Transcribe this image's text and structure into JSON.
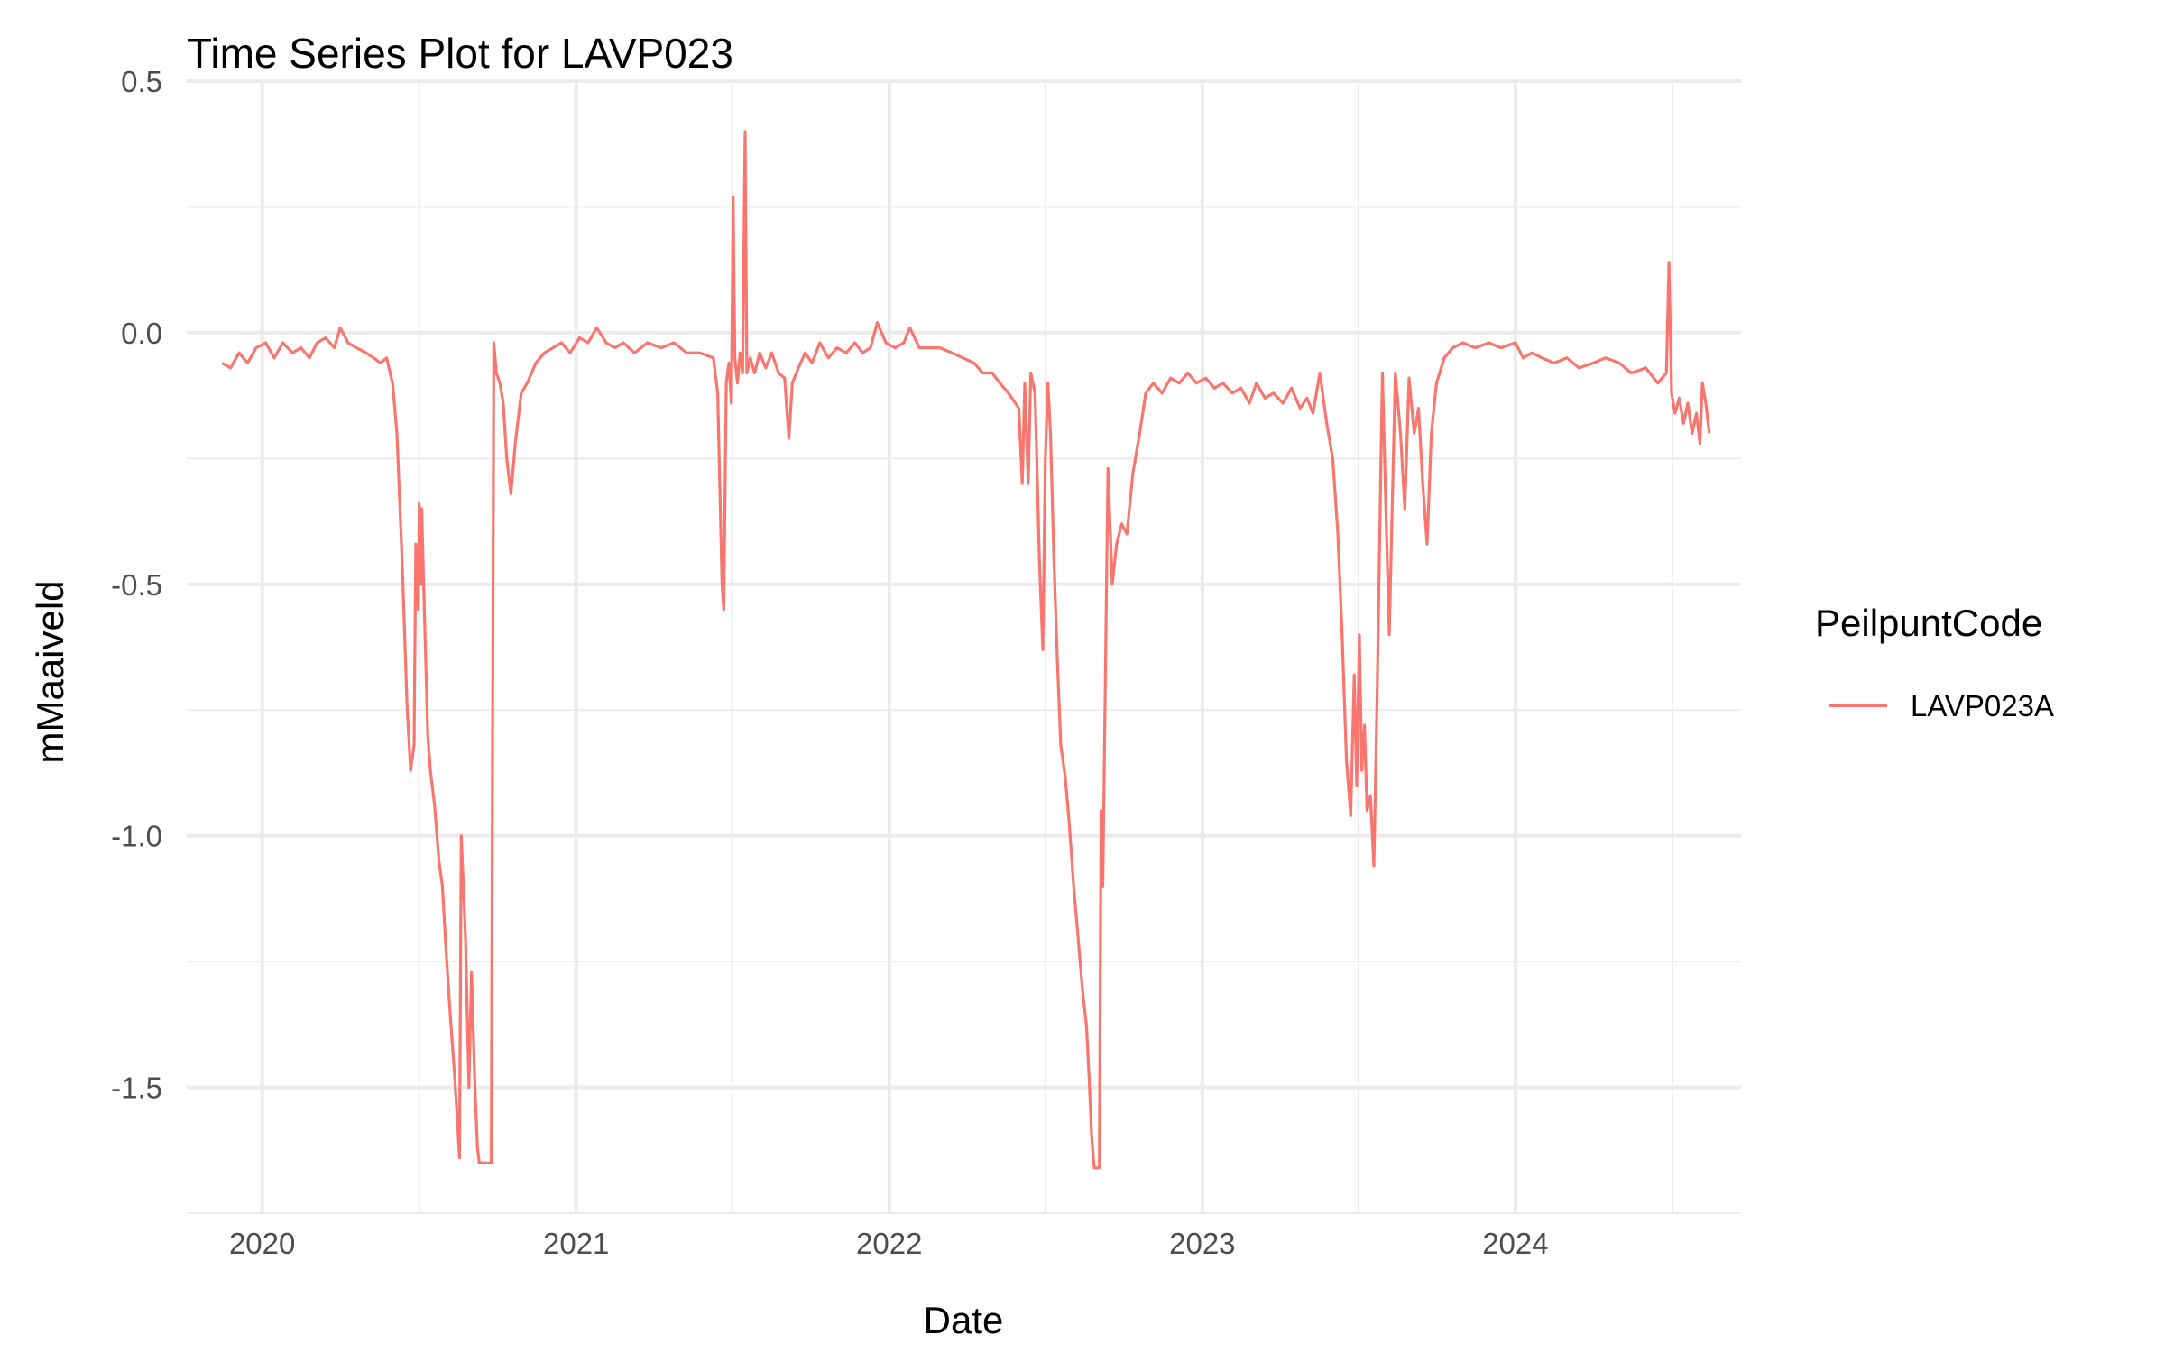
{
  "chart_data": {
    "type": "line",
    "title": "Time Series Plot for LAVP023",
    "xlabel": "Date",
    "ylabel": "mMaaiveld",
    "x_ticks": [
      "2020",
      "2021",
      "2022",
      "2023",
      "2024"
    ],
    "y_ticks": [
      "0.5",
      "0.0",
      "-0.5",
      "-1.0",
      "-1.5"
    ],
    "ylim": [
      -1.75,
      0.5
    ],
    "xlim": [
      "2019-10-05",
      "2024-09-20"
    ],
    "grid": true,
    "legend": {
      "title": "PeilpuntCode",
      "position": "right"
    },
    "series": [
      {
        "name": "LAVP023A",
        "color": "#F8766D",
        "points": [
          [
            "2019-11-15",
            -0.06
          ],
          [
            "2019-11-25",
            -0.07
          ],
          [
            "2019-12-05",
            -0.04
          ],
          [
            "2019-12-15",
            -0.06
          ],
          [
            "2019-12-25",
            -0.03
          ],
          [
            "2020-01-05",
            -0.02
          ],
          [
            "2020-01-15",
            -0.05
          ],
          [
            "2020-01-25",
            -0.02
          ],
          [
            "2020-02-05",
            -0.04
          ],
          [
            "2020-02-15",
            -0.03
          ],
          [
            "2020-02-25",
            -0.05
          ],
          [
            "2020-03-05",
            -0.02
          ],
          [
            "2020-03-15",
            -0.01
          ],
          [
            "2020-03-25",
            -0.03
          ],
          [
            "2020-04-01",
            0.01
          ],
          [
            "2020-04-10",
            -0.02
          ],
          [
            "2020-04-20",
            -0.03
          ],
          [
            "2020-05-01",
            -0.04
          ],
          [
            "2020-05-10",
            -0.05
          ],
          [
            "2020-05-18",
            -0.06
          ],
          [
            "2020-05-25",
            -0.05
          ],
          [
            "2020-06-01",
            -0.1
          ],
          [
            "2020-06-06",
            -0.2
          ],
          [
            "2020-06-12",
            -0.45
          ],
          [
            "2020-06-18",
            -0.75
          ],
          [
            "2020-06-22",
            -0.87
          ],
          [
            "2020-06-26",
            -0.82
          ],
          [
            "2020-06-28",
            -0.42
          ],
          [
            "2020-07-01",
            -0.55
          ],
          [
            "2020-07-02",
            -0.34
          ],
          [
            "2020-07-04",
            -0.5
          ],
          [
            "2020-07-05",
            -0.35
          ],
          [
            "2020-07-08",
            -0.55
          ],
          [
            "2020-07-12",
            -0.8
          ],
          [
            "2020-07-15",
            -0.87
          ],
          [
            "2020-07-20",
            -0.94
          ],
          [
            "2020-07-25",
            -1.05
          ],
          [
            "2020-07-29",
            -1.1
          ],
          [
            "2020-08-02",
            -1.22
          ],
          [
            "2020-08-07",
            -1.35
          ],
          [
            "2020-08-12",
            -1.47
          ],
          [
            "2020-08-16",
            -1.58
          ],
          [
            "2020-08-18",
            -1.64
          ],
          [
            "2020-08-20",
            -1.0
          ],
          [
            "2020-08-25",
            -1.2
          ],
          [
            "2020-08-29",
            -1.5
          ],
          [
            "2020-09-01",
            -1.27
          ],
          [
            "2020-09-05",
            -1.5
          ],
          [
            "2020-09-08",
            -1.62
          ],
          [
            "2020-09-10",
            -1.65
          ],
          [
            "2020-09-24",
            -1.65
          ],
          [
            "2020-09-27",
            -0.02
          ],
          [
            "2020-09-30",
            -0.08
          ],
          [
            "2020-10-04",
            -0.1
          ],
          [
            "2020-10-08",
            -0.14
          ],
          [
            "2020-10-12",
            -0.25
          ],
          [
            "2020-10-17",
            -0.32
          ],
          [
            "2020-10-22",
            -0.22
          ],
          [
            "2020-10-29",
            -0.12
          ],
          [
            "2020-11-05",
            -0.1
          ],
          [
            "2020-11-15",
            -0.06
          ],
          [
            "2020-11-25",
            -0.04
          ],
          [
            "2020-12-05",
            -0.03
          ],
          [
            "2020-12-15",
            -0.02
          ],
          [
            "2020-12-25",
            -0.04
          ],
          [
            "2021-01-05",
            -0.01
          ],
          [
            "2021-01-15",
            -0.02
          ],
          [
            "2021-01-25",
            0.01
          ],
          [
            "2021-02-05",
            -0.02
          ],
          [
            "2021-02-15",
            -0.03
          ],
          [
            "2021-02-25",
            -0.02
          ],
          [
            "2021-03-10",
            -0.04
          ],
          [
            "2021-03-25",
            -0.02
          ],
          [
            "2021-04-10",
            -0.03
          ],
          [
            "2021-04-25",
            -0.02
          ],
          [
            "2021-05-10",
            -0.04
          ],
          [
            "2021-05-25",
            -0.04
          ],
          [
            "2021-06-10",
            -0.05
          ],
          [
            "2021-06-15",
            -0.12
          ],
          [
            "2021-06-20",
            -0.5
          ],
          [
            "2021-06-22",
            -0.55
          ],
          [
            "2021-06-25",
            -0.1
          ],
          [
            "2021-06-28",
            -0.06
          ],
          [
            "2021-07-01",
            -0.14
          ],
          [
            "2021-07-03",
            0.27
          ],
          [
            "2021-07-05",
            -0.05
          ],
          [
            "2021-07-08",
            -0.1
          ],
          [
            "2021-07-11",
            -0.04
          ],
          [
            "2021-07-14",
            -0.08
          ],
          [
            "2021-07-17",
            0.4
          ],
          [
            "2021-07-19",
            -0.08
          ],
          [
            "2021-07-23",
            -0.05
          ],
          [
            "2021-07-28",
            -0.08
          ],
          [
            "2021-08-03",
            -0.04
          ],
          [
            "2021-08-10",
            -0.07
          ],
          [
            "2021-08-17",
            -0.04
          ],
          [
            "2021-08-25",
            -0.08
          ],
          [
            "2021-09-01",
            -0.09
          ],
          [
            "2021-09-06",
            -0.21
          ],
          [
            "2021-09-10",
            -0.1
          ],
          [
            "2021-09-17",
            -0.07
          ],
          [
            "2021-09-25",
            -0.04
          ],
          [
            "2021-10-03",
            -0.06
          ],
          [
            "2021-10-12",
            -0.02
          ],
          [
            "2021-10-22",
            -0.05
          ],
          [
            "2021-11-01",
            -0.03
          ],
          [
            "2021-11-12",
            -0.04
          ],
          [
            "2021-11-22",
            -0.02
          ],
          [
            "2021-12-01",
            -0.04
          ],
          [
            "2021-12-10",
            -0.03
          ],
          [
            "2021-12-18",
            0.02
          ],
          [
            "2021-12-28",
            -0.02
          ],
          [
            "2022-01-08",
            -0.03
          ],
          [
            "2022-01-18",
            -0.02
          ],
          [
            "2022-01-25",
            0.01
          ],
          [
            "2022-02-05",
            -0.03
          ],
          [
            "2022-02-18",
            -0.03
          ],
          [
            "2022-03-01",
            -0.03
          ],
          [
            "2022-03-15",
            -0.04
          ],
          [
            "2022-03-28",
            -0.05
          ],
          [
            "2022-04-10",
            -0.06
          ],
          [
            "2022-04-20",
            -0.08
          ],
          [
            "2022-05-01",
            -0.08
          ],
          [
            "2022-05-10",
            -0.1
          ],
          [
            "2022-05-20",
            -0.12
          ],
          [
            "2022-06-01",
            -0.15
          ],
          [
            "2022-06-05",
            -0.3
          ],
          [
            "2022-06-08",
            -0.1
          ],
          [
            "2022-06-12",
            -0.3
          ],
          [
            "2022-06-15",
            -0.08
          ],
          [
            "2022-06-20",
            -0.12
          ],
          [
            "2022-06-25",
            -0.45
          ],
          [
            "2022-06-29",
            -0.63
          ],
          [
            "2022-07-02",
            -0.25
          ],
          [
            "2022-07-05",
            -0.1
          ],
          [
            "2022-07-08",
            -0.2
          ],
          [
            "2022-07-12",
            -0.45
          ],
          [
            "2022-07-16",
            -0.65
          ],
          [
            "2022-07-20",
            -0.82
          ],
          [
            "2022-07-25",
            -0.88
          ],
          [
            "2022-07-30",
            -0.98
          ],
          [
            "2022-08-04",
            -1.1
          ],
          [
            "2022-08-09",
            -1.2
          ],
          [
            "2022-08-14",
            -1.3
          ],
          [
            "2022-08-19",
            -1.38
          ],
          [
            "2022-08-22",
            -1.48
          ],
          [
            "2022-08-25",
            -1.6
          ],
          [
            "2022-08-28",
            -1.66
          ],
          [
            "2022-09-03",
            -1.66
          ],
          [
            "2022-09-05",
            -0.95
          ],
          [
            "2022-09-07",
            -1.1
          ],
          [
            "2022-09-10",
            -0.68
          ],
          [
            "2022-09-13",
            -0.27
          ],
          [
            "2022-09-18",
            -0.5
          ],
          [
            "2022-09-23",
            -0.42
          ],
          [
            "2022-09-29",
            -0.38
          ],
          [
            "2022-10-05",
            -0.4
          ],
          [
            "2022-10-12",
            -0.28
          ],
          [
            "2022-10-20",
            -0.2
          ],
          [
            "2022-10-27",
            -0.12
          ],
          [
            "2022-11-05",
            -0.1
          ],
          [
            "2022-11-15",
            -0.12
          ],
          [
            "2022-11-25",
            -0.09
          ],
          [
            "2022-12-05",
            -0.1
          ],
          [
            "2022-12-15",
            -0.08
          ],
          [
            "2022-12-25",
            -0.1
          ],
          [
            "2023-01-05",
            -0.09
          ],
          [
            "2023-01-15",
            -0.11
          ],
          [
            "2023-01-25",
            -0.1
          ],
          [
            "2023-02-05",
            -0.12
          ],
          [
            "2023-02-15",
            -0.11
          ],
          [
            "2023-02-25",
            -0.14
          ],
          [
            "2023-03-05",
            -0.1
          ],
          [
            "2023-03-15",
            -0.13
          ],
          [
            "2023-03-25",
            -0.12
          ],
          [
            "2023-04-05",
            -0.14
          ],
          [
            "2023-04-15",
            -0.11
          ],
          [
            "2023-04-25",
            -0.15
          ],
          [
            "2023-05-03",
            -0.13
          ],
          [
            "2023-05-10",
            -0.16
          ],
          [
            "2023-05-18",
            -0.08
          ],
          [
            "2023-05-26",
            -0.18
          ],
          [
            "2023-06-02",
            -0.25
          ],
          [
            "2023-06-08",
            -0.4
          ],
          [
            "2023-06-13",
            -0.6
          ],
          [
            "2023-06-18",
            -0.85
          ],
          [
            "2023-06-23",
            -0.96
          ],
          [
            "2023-06-27",
            -0.68
          ],
          [
            "2023-06-30",
            -0.9
          ],
          [
            "2023-07-03",
            -0.6
          ],
          [
            "2023-07-06",
            -0.87
          ],
          [
            "2023-07-09",
            -0.78
          ],
          [
            "2023-07-12",
            -0.95
          ],
          [
            "2023-07-16",
            -0.92
          ],
          [
            "2023-07-20",
            -1.06
          ],
          [
            "2023-07-24",
            -0.7
          ],
          [
            "2023-07-28",
            -0.28
          ],
          [
            "2023-07-30",
            -0.08
          ],
          [
            "2023-08-03",
            -0.35
          ],
          [
            "2023-08-07",
            -0.6
          ],
          [
            "2023-08-11",
            -0.3
          ],
          [
            "2023-08-14",
            -0.08
          ],
          [
            "2023-08-20",
            -0.2
          ],
          [
            "2023-08-25",
            -0.35
          ],
          [
            "2023-08-30",
            -0.09
          ],
          [
            "2023-09-05",
            -0.2
          ],
          [
            "2023-09-10",
            -0.15
          ],
          [
            "2023-09-15",
            -0.3
          ],
          [
            "2023-09-20",
            -0.42
          ],
          [
            "2023-09-25",
            -0.2
          ],
          [
            "2023-10-01",
            -0.1
          ],
          [
            "2023-10-10",
            -0.05
          ],
          [
            "2023-10-20",
            -0.03
          ],
          [
            "2023-11-01",
            -0.02
          ],
          [
            "2023-11-15",
            -0.03
          ],
          [
            "2023-12-01",
            -0.02
          ],
          [
            "2023-12-15",
            -0.03
          ],
          [
            "2024-01-01",
            -0.02
          ],
          [
            "2024-01-10",
            -0.05
          ],
          [
            "2024-01-20",
            -0.04
          ],
          [
            "2024-02-01",
            -0.05
          ],
          [
            "2024-02-15",
            -0.06
          ],
          [
            "2024-03-01",
            -0.05
          ],
          [
            "2024-03-15",
            -0.07
          ],
          [
            "2024-04-01",
            -0.06
          ],
          [
            "2024-04-15",
            -0.05
          ],
          [
            "2024-05-01",
            -0.06
          ],
          [
            "2024-05-15",
            -0.08
          ],
          [
            "2024-06-01",
            -0.07
          ],
          [
            "2024-06-15",
            -0.1
          ],
          [
            "2024-06-25",
            -0.08
          ],
          [
            "2024-06-28",
            0.14
          ],
          [
            "2024-07-01",
            -0.12
          ],
          [
            "2024-07-05",
            -0.16
          ],
          [
            "2024-07-10",
            -0.13
          ],
          [
            "2024-07-15",
            -0.18
          ],
          [
            "2024-07-20",
            -0.14
          ],
          [
            "2024-07-25",
            -0.2
          ],
          [
            "2024-07-30",
            -0.16
          ],
          [
            "2024-08-03",
            -0.22
          ],
          [
            "2024-08-06",
            -0.1
          ],
          [
            "2024-08-10",
            -0.14
          ],
          [
            "2024-08-14",
            -0.2
          ]
        ]
      }
    ]
  }
}
